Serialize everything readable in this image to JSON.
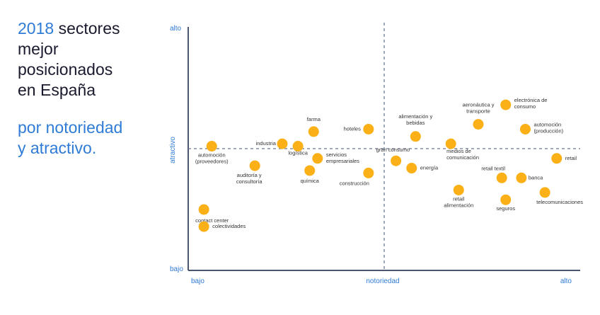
{
  "header": {
    "year": "2018",
    "title_rest": "sectores",
    "title_lines": [
      "mejor",
      "posicionados",
      "en España"
    ],
    "subtitle_lines": [
      "por notoriedad",
      "y atractivo."
    ]
  },
  "colors": {
    "accent": "#2f7bd6",
    "point": "#fbb017",
    "axis": "#4a5570",
    "divider": "#6b7890"
  },
  "chart_data": {
    "type": "scatter",
    "title": "2018 sectores mejor posicionados en España por notoriedad y atractivo.",
    "xlabel": "notoriedad",
    "ylabel": "atractivo",
    "x_low_label": "bajo",
    "x_high_label": "alto",
    "y_low_label": "bajo",
    "y_high_label": "alto",
    "xlim": [
      0,
      100
    ],
    "ylim": [
      0,
      100
    ],
    "x_divider": 50,
    "y_divider": 50,
    "points": [
      {
        "name": "automoción (proveedores)",
        "lines": [
          "automoción",
          "(proveedores)"
        ],
        "x": 6,
        "y": 51
      },
      {
        "name": "auditoría y consultoría",
        "lines": [
          "auditoría y",
          "consultoría"
        ],
        "x": 17,
        "y": 43
      },
      {
        "name": "industria",
        "lines": [
          "industria"
        ],
        "x": 24,
        "y": 52
      },
      {
        "name": "logística",
        "lines": [
          "logística"
        ],
        "x": 28,
        "y": 51
      },
      {
        "name": "farma",
        "lines": [
          "farma"
        ],
        "x": 32,
        "y": 57
      },
      {
        "name": "servicios empresariales",
        "lines": [
          "servicios",
          "empresariales"
        ],
        "x": 33,
        "y": 46
      },
      {
        "name": "química",
        "lines": [
          "química"
        ],
        "x": 31,
        "y": 41
      },
      {
        "name": "hoteles",
        "lines": [
          "hoteles"
        ],
        "x": 46,
        "y": 58
      },
      {
        "name": "construcción",
        "lines": [
          "construcción"
        ],
        "x": 46,
        "y": 40
      },
      {
        "name": "gran consumo",
        "lines": [
          "gran consumo"
        ],
        "x": 53,
        "y": 45
      },
      {
        "name": "alimentación y bebidas",
        "lines": [
          "alimentación y",
          "bebidas"
        ],
        "x": 58,
        "y": 55
      },
      {
        "name": "energía",
        "lines": [
          "energía"
        ],
        "x": 57,
        "y": 42
      },
      {
        "name": "medios de comunicación",
        "lines": [
          "medios de",
          "comunicación"
        ],
        "x": 67,
        "y": 52
      },
      {
        "name": "aeronáutica y transporte",
        "lines": [
          "aeronáutica y",
          "transporte"
        ],
        "x": 74,
        "y": 60
      },
      {
        "name": "electrónica de consumo",
        "lines": [
          "electrónica de",
          "consumo"
        ],
        "x": 81,
        "y": 68
      },
      {
        "name": "automoción (producción)",
        "lines": [
          "automoción",
          "(producción)"
        ],
        "x": 86,
        "y": 58
      },
      {
        "name": "retail",
        "lines": [
          "retail"
        ],
        "x": 94,
        "y": 46
      },
      {
        "name": "retail textil",
        "lines": [
          "retail textil"
        ],
        "x": 80,
        "y": 38
      },
      {
        "name": "banca",
        "lines": [
          "banca"
        ],
        "x": 85,
        "y": 38
      },
      {
        "name": "retail alimentación",
        "lines": [
          "retail",
          "alimentación"
        ],
        "x": 69,
        "y": 33
      },
      {
        "name": "seguros",
        "lines": [
          "seguros"
        ],
        "x": 81,
        "y": 29
      },
      {
        "name": "telecomunicaciones",
        "lines": [
          "telecomunicaciones"
        ],
        "x": 91,
        "y": 32
      },
      {
        "name": "contact center",
        "lines": [
          "contact center"
        ],
        "x": 4,
        "y": 25
      },
      {
        "name": "colectividades",
        "lines": [
          "colectividades"
        ],
        "x": 4,
        "y": 18
      }
    ]
  }
}
